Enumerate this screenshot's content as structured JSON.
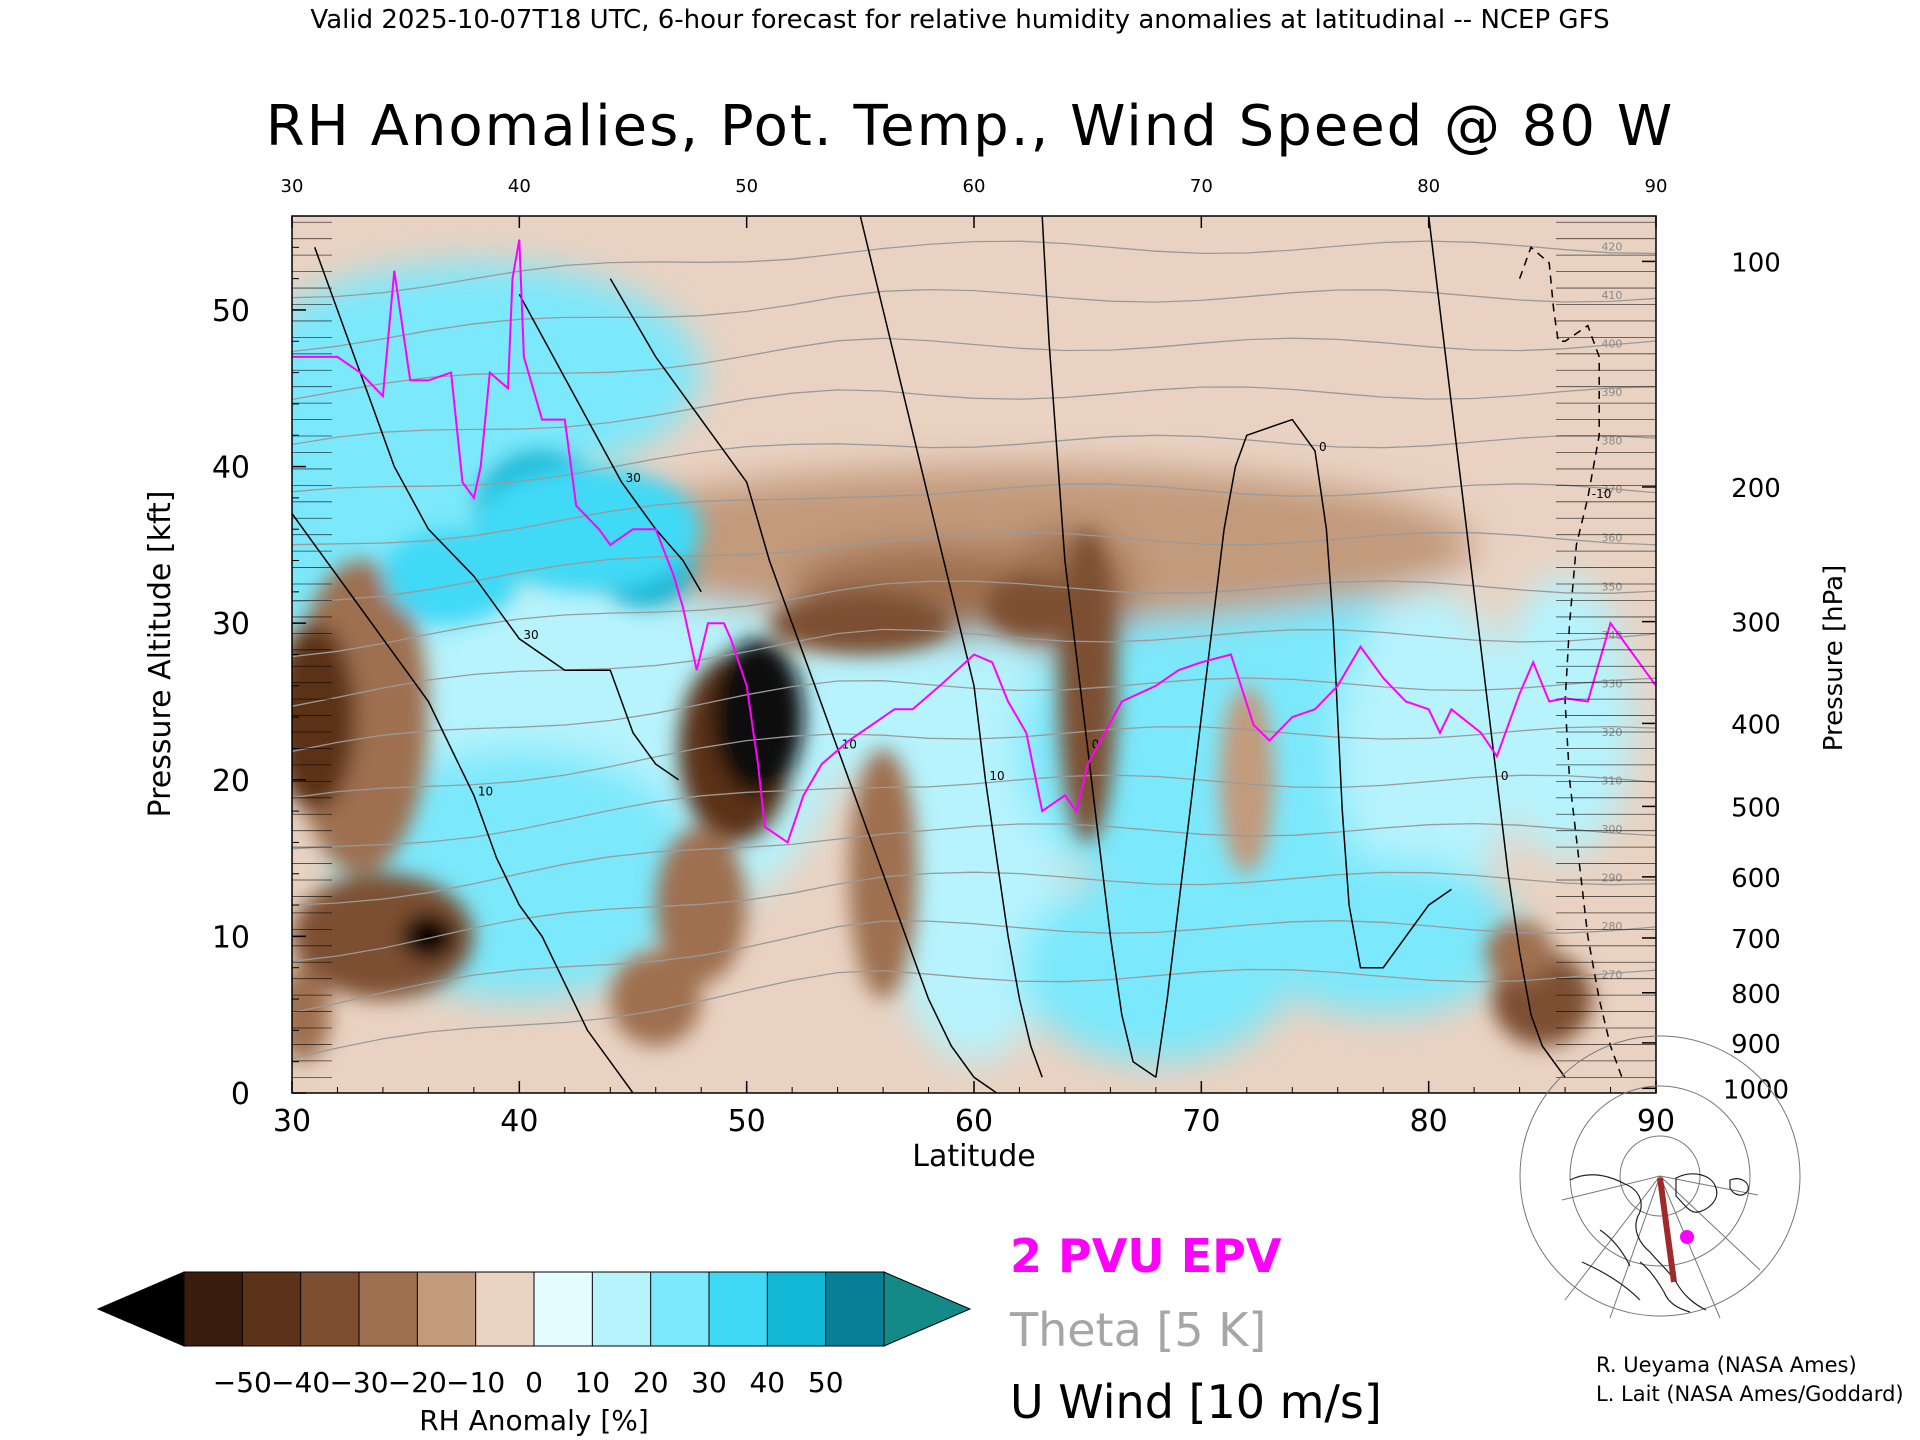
{
  "header": {
    "valid_line": "Valid 2025-10-07T18 UTC, 6-hour forecast for relative humidity anomalies at latitudinal -- NCEP GFS"
  },
  "chart_data": {
    "type": "heatmap",
    "title": "RH Anomalies, Pot. Temp., Wind Speed @ 80 W",
    "xlabel": "Latitude",
    "ylabel_left": "Pressure Altitude [kft]",
    "ylabel_right": "Pressure [hPa]",
    "xlim": [
      30,
      90
    ],
    "ylim": [
      0,
      56
    ],
    "x_ticks": [
      "30",
      "40",
      "50",
      "60",
      "70",
      "80",
      "90"
    ],
    "y_ticks_left": [
      "0",
      "10",
      "20",
      "30",
      "40",
      "50"
    ],
    "pressure_ticks": [
      {
        "label": "100",
        "kft": 53.1
      },
      {
        "label": "200",
        "kft": 38.7
      },
      {
        "label": "300",
        "kft": 30.1
      },
      {
        "label": "400",
        "kft": 23.6
      },
      {
        "label": "500",
        "kft": 18.3
      },
      {
        "label": "600",
        "kft": 13.8
      },
      {
        "label": "700",
        "kft": 9.9
      },
      {
        "label": "800",
        "kft": 6.4
      },
      {
        "label": "900",
        "kft": 3.2
      },
      {
        "label": "1000",
        "kft": 0.3
      }
    ],
    "theta_labels": [
      "420",
      "410",
      "400",
      "390",
      "380",
      "370",
      "360",
      "350",
      "340",
      "330",
      "320",
      "310",
      "300",
      "290",
      "280",
      "270"
    ],
    "u_wind_labels": [
      "30",
      "10",
      "0",
      "-10"
    ],
    "legend": {
      "epv": "2 PVU EPV",
      "theta": "Theta [5 K]",
      "uwind": "U Wind [10 m/s]"
    },
    "colorbar": {
      "label": "RH Anomaly [%]",
      "ticks": [
        "−50",
        "−40",
        "−30",
        "−20",
        "−10",
        "0",
        "10",
        "20",
        "30",
        "40",
        "50"
      ],
      "colors": [
        "#3a1c0e",
        "#5c3319",
        "#7d4f30",
        "#9e6f4f",
        "#c29a7c",
        "#ead3c3",
        "#e4fbff",
        "#b6f3fd",
        "#7be8fb",
        "#3fd9f6",
        "#13b7d6",
        "#077f96"
      ],
      "under_color": "#000000",
      "over_color": "#138a88"
    },
    "epv_2pvu_line": [
      [
        30,
        47
      ],
      [
        32,
        47
      ],
      [
        33,
        46
      ],
      [
        34,
        44.5
      ],
      [
        34.5,
        52.5
      ],
      [
        35.2,
        45.5
      ],
      [
        36,
        45.5
      ],
      [
        37,
        46
      ],
      [
        37.5,
        39
      ],
      [
        38,
        38
      ],
      [
        38.3,
        40
      ],
      [
        38.7,
        46
      ],
      [
        39.5,
        45
      ],
      [
        39.7,
        52
      ],
      [
        40,
        54.5
      ],
      [
        40.2,
        47
      ],
      [
        41,
        43
      ],
      [
        42,
        43
      ],
      [
        42.5,
        37.5
      ],
      [
        43.5,
        36
      ],
      [
        44,
        35
      ],
      [
        45,
        36
      ],
      [
        46,
        36
      ],
      [
        46.8,
        33
      ],
      [
        47.2,
        31
      ],
      [
        47.8,
        27
      ],
      [
        48.3,
        30
      ],
      [
        49,
        30
      ],
      [
        49.3,
        29
      ],
      [
        50,
        26
      ],
      [
        50.5,
        21
      ],
      [
        50.8,
        17
      ],
      [
        51.8,
        16
      ],
      [
        52.5,
        19
      ],
      [
        53.3,
        21
      ],
      [
        54.5,
        22.5
      ],
      [
        55.5,
        23.5
      ],
      [
        56.5,
        24.5
      ],
      [
        57.3,
        24.5
      ],
      [
        58.5,
        26
      ],
      [
        60,
        28
      ],
      [
        60.8,
        27.5
      ],
      [
        61.5,
        25
      ],
      [
        62.3,
        23
      ],
      [
        63,
        18
      ],
      [
        64,
        19
      ],
      [
        64.5,
        18
      ],
      [
        65,
        21
      ],
      [
        66.5,
        25
      ],
      [
        68,
        26
      ],
      [
        69,
        27
      ],
      [
        70,
        27.5
      ],
      [
        71.3,
        28
      ],
      [
        72.3,
        23.5
      ],
      [
        73,
        22.5
      ],
      [
        74,
        24
      ],
      [
        75,
        24.5
      ],
      [
        76,
        26
      ],
      [
        77,
        28.5
      ],
      [
        78,
        26.5
      ],
      [
        79,
        25
      ],
      [
        80,
        24.5
      ],
      [
        80.5,
        23
      ],
      [
        81,
        24.5
      ],
      [
        82.3,
        23
      ],
      [
        83,
        21.5
      ],
      [
        84,
        25.5
      ],
      [
        84.6,
        27.5
      ],
      [
        85.3,
        25
      ],
      [
        86,
        25.2
      ],
      [
        87,
        25
      ],
      [
        88,
        30
      ],
      [
        89,
        28
      ],
      [
        90,
        26
      ]
    ],
    "u_wind_contours": [
      {
        "value": "30",
        "points": [
          [
            31,
            54
          ],
          [
            32.5,
            48
          ],
          [
            33.5,
            44
          ],
          [
            34.5,
            40
          ],
          [
            36,
            36
          ],
          [
            38,
            33
          ],
          [
            40,
            29
          ],
          [
            42,
            27
          ],
          [
            44,
            27
          ],
          [
            45,
            23
          ],
          [
            46,
            21
          ],
          [
            47,
            20
          ]
        ]
      },
      {
        "value": "30",
        "points": [
          [
            40,
            51
          ],
          [
            41.5,
            47
          ],
          [
            43,
            43
          ],
          [
            44.5,
            39
          ],
          [
            46,
            36
          ],
          [
            47.2,
            34
          ],
          [
            48,
            32
          ]
        ]
      },
      {
        "value": "10",
        "points": [
          [
            30,
            37
          ],
          [
            31,
            35
          ],
          [
            32,
            33
          ],
          [
            33,
            31
          ],
          [
            34,
            29
          ],
          [
            35,
            27
          ],
          [
            36,
            25
          ],
          [
            37,
            22
          ],
          [
            38,
            19
          ],
          [
            39,
            15
          ],
          [
            40,
            12
          ],
          [
            41,
            10
          ],
          [
            42,
            7
          ],
          [
            43,
            4
          ],
          [
            44,
            2
          ],
          [
            45,
            0
          ]
        ]
      },
      {
        "value": "10",
        "points": [
          [
            44,
            52
          ],
          [
            46,
            47
          ],
          [
            48,
            43
          ],
          [
            50,
            39
          ],
          [
            51,
            34
          ],
          [
            52,
            30
          ],
          [
            53,
            26
          ],
          [
            54,
            22
          ],
          [
            55,
            18
          ],
          [
            56,
            14
          ],
          [
            57,
            10
          ],
          [
            58,
            6
          ],
          [
            59,
            3
          ],
          [
            60,
            1
          ],
          [
            61,
            0
          ]
        ]
      },
      {
        "value": "10",
        "points": [
          [
            55,
            56
          ],
          [
            56,
            50
          ],
          [
            57,
            44
          ],
          [
            58,
            38
          ],
          [
            59,
            32
          ],
          [
            60,
            26
          ],
          [
            60.5,
            20
          ],
          [
            61,
            15
          ],
          [
            61.5,
            10
          ],
          [
            62,
            6
          ],
          [
            62.5,
            3
          ],
          [
            63,
            1
          ]
        ]
      },
      {
        "value": "0",
        "points": [
          [
            63,
            56
          ],
          [
            63.3,
            48
          ],
          [
            63.7,
            40
          ],
          [
            64,
            34
          ],
          [
            64.5,
            28
          ],
          [
            65,
            22
          ],
          [
            65.5,
            16
          ],
          [
            66,
            10
          ],
          [
            66.5,
            5
          ],
          [
            67,
            2
          ],
          [
            68,
            1
          ]
        ]
      },
      {
        "value": "0",
        "points": [
          [
            68,
            1
          ],
          [
            68.5,
            6
          ],
          [
            69,
            12
          ],
          [
            69.5,
            18
          ],
          [
            70,
            24
          ],
          [
            70.5,
            30
          ],
          [
            71,
            36
          ],
          [
            71.5,
            40
          ],
          [
            72,
            42
          ],
          [
            73,
            42.5
          ],
          [
            74,
            43
          ],
          [
            75,
            41
          ],
          [
            75.5,
            36
          ],
          [
            75.8,
            30
          ],
          [
            76,
            24
          ],
          [
            76.2,
            18
          ],
          [
            76.5,
            12
          ],
          [
            77,
            8
          ],
          [
            78,
            8
          ],
          [
            79,
            10
          ],
          [
            80,
            12
          ],
          [
            81,
            13
          ]
        ]
      },
      {
        "value": "0",
        "points": [
          [
            80,
            56
          ],
          [
            80.5,
            50
          ],
          [
            81,
            44
          ],
          [
            81.5,
            38
          ],
          [
            82,
            32
          ],
          [
            82.5,
            26
          ],
          [
            83,
            20
          ],
          [
            83.5,
            14
          ],
          [
            84,
            9
          ],
          [
            84.5,
            5
          ],
          [
            85,
            3
          ],
          [
            86,
            1
          ]
        ]
      },
      {
        "value": "-10",
        "points": [
          [
            84,
            52
          ],
          [
            84.5,
            54
          ],
          [
            85.3,
            53
          ],
          [
            85.5,
            50
          ],
          [
            85.7,
            48
          ],
          [
            86,
            48
          ],
          [
            87,
            49
          ],
          [
            87.5,
            47
          ],
          [
            87.5,
            42
          ],
          [
            87,
            38
          ],
          [
            86.5,
            35
          ],
          [
            86.2,
            30
          ],
          [
            86,
            25
          ],
          [
            86.2,
            20
          ],
          [
            86.6,
            15
          ],
          [
            87,
            10
          ],
          [
            87.5,
            6
          ],
          [
            88,
            3
          ],
          [
            88.5,
            1
          ]
        ]
      }
    ]
  },
  "locator_map": {
    "label": "section-80W-map"
  },
  "credits": {
    "line1": "R. Ueyama (NASA Ames)",
    "line2": "L. Lait (NASA Ames/Goddard)"
  }
}
